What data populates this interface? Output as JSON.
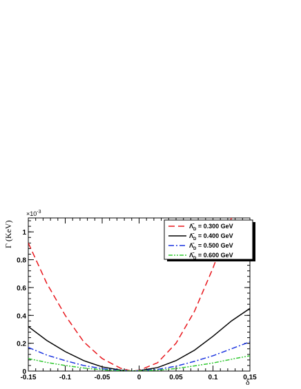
{
  "chart_data": {
    "type": "line",
    "title": "",
    "xlabel": "δ",
    "ylabel": "Γ (KeV)",
    "y_exponent_label": "×10",
    "y_exponent_power": "-3",
    "xlim": [
      -0.15,
      0.15
    ],
    "ylim": [
      0,
      1.1
    ],
    "x_ticks": [
      -0.15,
      -0.1,
      -0.05,
      0,
      0.05,
      0.1,
      0.15
    ],
    "x_tick_labels": [
      "-0.15",
      "-0.1",
      "-0.05",
      "0",
      "0.05",
      "0.1",
      "0.15"
    ],
    "y_ticks": [
      0,
      0.2,
      0.4,
      0.6,
      0.8,
      1.0
    ],
    "y_tick_labels": [
      "0",
      "0.2",
      "0.4",
      "0.6",
      "0.8",
      "1"
    ],
    "grid": false,
    "legend_position": "top-right",
    "series": [
      {
        "name": "Λ̄_D = 0.300 GeV",
        "legend_symbol": "Λ̄",
        "legend_subscript": "D",
        "legend_value": "= 0.300 GeV",
        "color": "#e8161c",
        "dash": "9,5",
        "x": [
          -0.15,
          -0.125,
          -0.1,
          -0.075,
          -0.05,
          -0.025,
          -0.01,
          0,
          0.025,
          0.05,
          0.075,
          0.1,
          0.125,
          0.15
        ],
        "y": [
          0.92,
          0.63,
          0.4,
          0.21,
          0.09,
          0.02,
          0.0,
          0.005,
          0.06,
          0.2,
          0.43,
          0.74,
          1.1,
          1.55
        ]
      },
      {
        "name": "Λ̄_D = 0.400 GeV",
        "legend_symbol": "Λ̄",
        "legend_subscript": "D",
        "legend_value": "= 0.400 GeV",
        "color": "#000000",
        "dash": "",
        "x": [
          -0.15,
          -0.125,
          -0.1,
          -0.075,
          -0.05,
          -0.025,
          -0.01,
          0,
          0.025,
          0.05,
          0.075,
          0.1,
          0.125,
          0.15
        ],
        "y": [
          0.32,
          0.22,
          0.14,
          0.075,
          0.03,
          0.007,
          0.0,
          0.003,
          0.025,
          0.075,
          0.15,
          0.25,
          0.36,
          0.45
        ]
      },
      {
        "name": "Λ̄_D = 0.500 GeV",
        "legend_symbol": "Λ̄",
        "legend_subscript": "D",
        "legend_value": "= 0.500 GeV",
        "color": "#1a33e0",
        "dash": "8,3,2,3",
        "x": [
          -0.15,
          -0.125,
          -0.1,
          -0.075,
          -0.05,
          -0.025,
          -0.01,
          0,
          0.025,
          0.05,
          0.075,
          0.1,
          0.125,
          0.15
        ],
        "y": [
          0.17,
          0.115,
          0.075,
          0.04,
          0.017,
          0.004,
          0.0,
          0.002,
          0.012,
          0.035,
          0.07,
          0.11,
          0.16,
          0.21
        ]
      },
      {
        "name": "Λ̄_D = 0.600 GeV",
        "legend_symbol": "Λ̄",
        "legend_subscript": "D",
        "legend_value": "= 0.600 GeV",
        "color": "#2ec82e",
        "dash": "6,2,2,2,2,2",
        "x": [
          -0.15,
          -0.125,
          -0.1,
          -0.075,
          -0.05,
          -0.025,
          -0.01,
          0,
          0.025,
          0.05,
          0.075,
          0.1,
          0.125,
          0.15
        ],
        "y": [
          0.09,
          0.062,
          0.04,
          0.022,
          0.009,
          0.002,
          0.0,
          0.001,
          0.006,
          0.018,
          0.037,
          0.058,
          0.085,
          0.11
        ]
      }
    ]
  }
}
